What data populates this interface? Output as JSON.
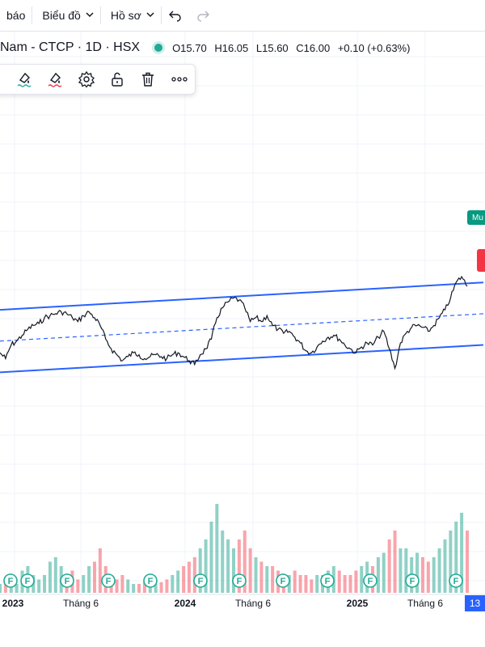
{
  "toolbar": {
    "items": [
      {
        "label": "báo"
      },
      {
        "label": "Biểu đồ"
      },
      {
        "label": "Hồ sơ"
      }
    ],
    "undo_icon": "undo-icon",
    "redo_icon": "redo-icon"
  },
  "legend": {
    "symbol": "Nam - CTCP · 1D · HSX",
    "open": "O15.70",
    "high": "H16.05",
    "low": "L15.60",
    "close": "C16.00",
    "change": "+0.10 (+0.63%)",
    "status_color": "#22ab94"
  },
  "draw_toolbar": {
    "icons": [
      "line-color-icon",
      "fill-color-icon",
      "settings-icon",
      "unlock-icon",
      "trash-icon",
      "more-icon"
    ]
  },
  "right_tags": {
    "green": {
      "label": "Mu",
      "color": "#089981"
    },
    "red_color": "#f23645"
  },
  "date_badge": "13",
  "chart_data": {
    "type": "line",
    "series": [
      {
        "values": [
          15.0,
          14.7,
          15.4,
          15.6,
          15.9,
          16.2,
          16.4,
          16.5,
          16.8,
          16.9,
          17.0,
          17.1,
          17.0,
          16.8,
          16.6,
          16.9,
          17.1,
          16.8,
          16.4,
          15.7,
          15.2,
          14.9,
          14.6,
          14.8,
          15.0,
          14.9,
          14.7,
          14.8,
          14.9,
          14.8,
          14.7,
          14.9,
          15.0,
          14.8,
          14.6,
          14.4,
          14.9,
          15.2,
          15.7,
          16.8,
          17.3,
          17.6,
          17.8,
          17.7,
          17.3,
          16.6,
          16.8,
          16.6,
          16.9,
          16.4,
          16.2,
          16.0,
          16.1,
          15.8,
          15.5,
          15.1,
          15.0,
          15.3,
          15.6,
          15.8,
          15.9,
          15.7,
          15.4,
          15.2,
          15.0,
          15.3,
          15.5,
          15.4,
          15.8,
          16.1,
          15.2,
          14.2,
          15.5,
          16.0,
          16.3,
          16.4,
          16.3,
          16.1,
          16.4,
          16.8,
          17.2,
          17.8,
          18.6,
          18.9,
          18.4
        ]
      }
    ],
    "x_labels": [
      "2023",
      "Tháng 6",
      "2024",
      "Tháng 6",
      "2025",
      "Tháng 6"
    ],
    "channel_lines": {
      "upper": [
        17.2,
        18.6
      ],
      "middle": [
        15.6,
        17.0
      ],
      "lower": [
        14.0,
        15.4
      ]
    },
    "volume": [
      0.1,
      0.15,
      0.2,
      0.1,
      0.25,
      0.3,
      0.2,
      0.15,
      0.2,
      0.35,
      0.4,
      0.3,
      0.2,
      0.25,
      0.15,
      0.2,
      0.3,
      0.35,
      0.5,
      0.3,
      0.2,
      0.15,
      0.2,
      0.15,
      0.1,
      0.1,
      0.12,
      0.15,
      0.1,
      0.12,
      0.15,
      0.2,
      0.25,
      0.3,
      0.35,
      0.4,
      0.5,
      0.6,
      0.8,
      1.0,
      0.7,
      0.6,
      0.5,
      0.6,
      0.7,
      0.5,
      0.4,
      0.35,
      0.3,
      0.3,
      0.25,
      0.2,
      0.2,
      0.25,
      0.2,
      0.2,
      0.15,
      0.2,
      0.2,
      0.25,
      0.3,
      0.25,
      0.2,
      0.2,
      0.25,
      0.3,
      0.35,
      0.3,
      0.4,
      0.45,
      0.6,
      0.7,
      0.5,
      0.5,
      0.4,
      0.45,
      0.4,
      0.35,
      0.4,
      0.5,
      0.6,
      0.7,
      0.8,
      0.9,
      0.7
    ],
    "dividend_markers": 12,
    "grid": true
  }
}
